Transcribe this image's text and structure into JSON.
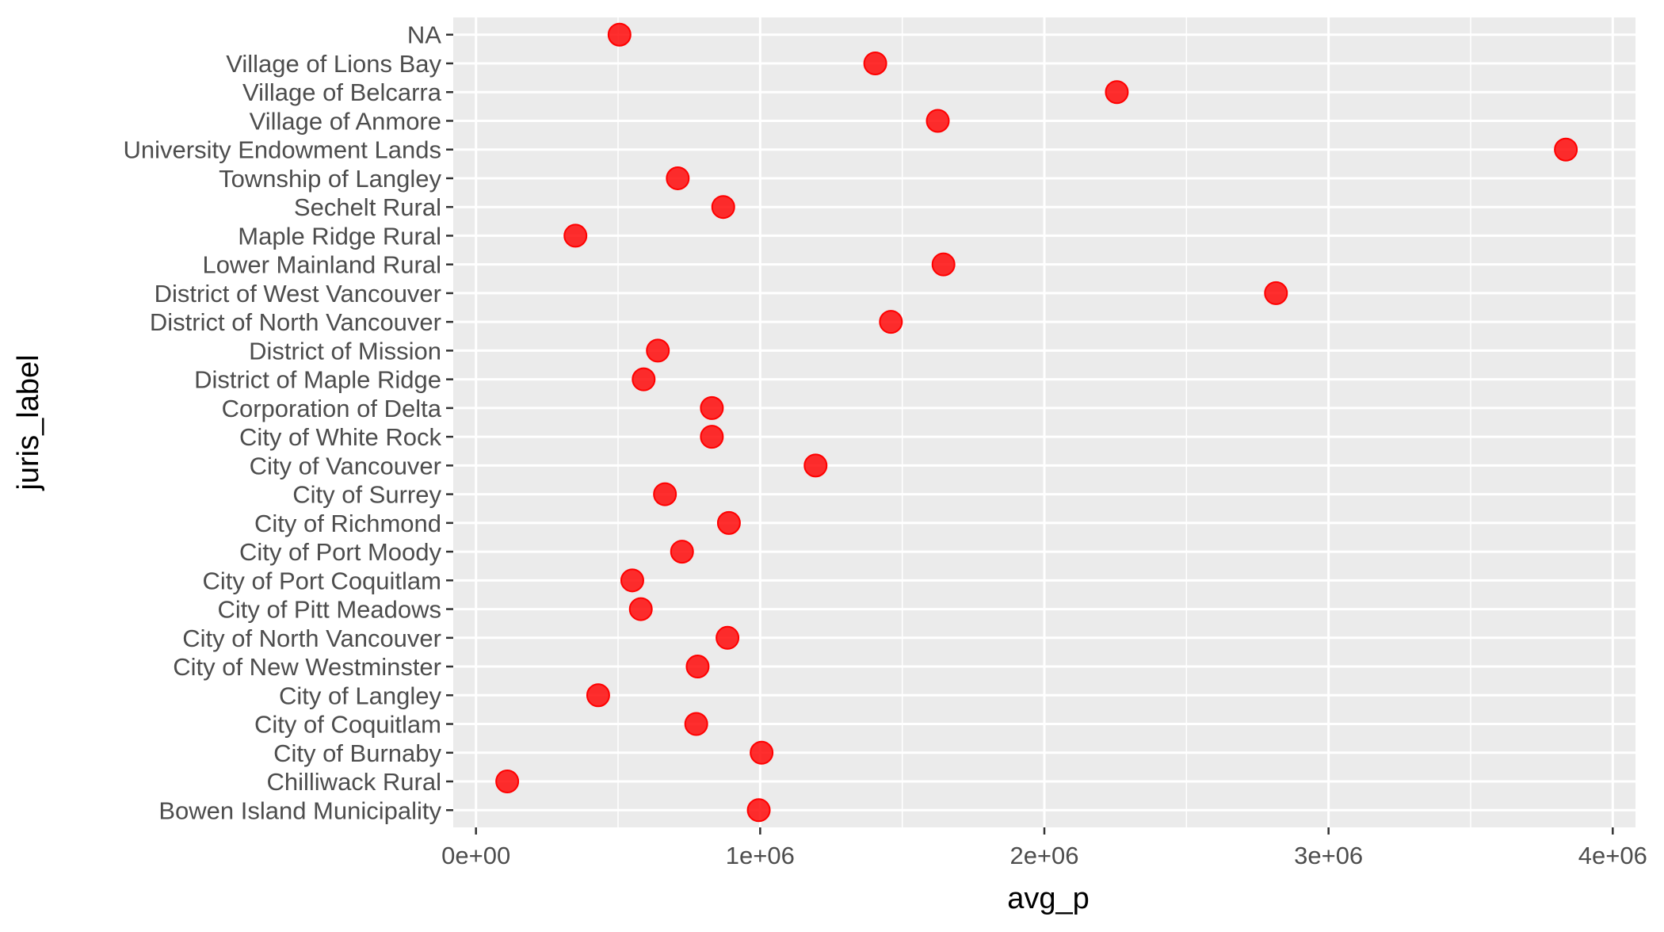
{
  "chart_data": {
    "type": "scatter",
    "xlabel": "avg_p",
    "ylabel": "juris_label",
    "xlim": [
      -80000,
      4080000
    ],
    "x_ticks": [
      0,
      1000000,
      2000000,
      3000000,
      4000000
    ],
    "x_tick_labels": [
      "0e+00",
      "1e+06",
      "2e+06",
      "3e+06",
      "4e+06"
    ],
    "categories": [
      "Bowen Island Municipality",
      "Chilliwack Rural",
      "City of Burnaby",
      "City of Coquitlam",
      "City of Langley",
      "City of New Westminster",
      "City of North Vancouver",
      "City of Pitt Meadows",
      "City of Port Coquitlam",
      "City of Port Moody",
      "City of Richmond",
      "City of Surrey",
      "City of Vancouver",
      "City of White Rock",
      "Corporation of Delta",
      "District of Maple Ridge",
      "District of Mission",
      "District of North Vancouver",
      "District of West Vancouver",
      "Lower Mainland Rural",
      "Maple Ridge Rural",
      "Sechelt Rural",
      "Township of Langley",
      "University Endowment Lands",
      "Village of Anmore",
      "Village of Belcarra",
      "Village of Lions Bay",
      "NA"
    ],
    "values": [
      995000,
      110000,
      1005000,
      775000,
      430000,
      780000,
      885000,
      580000,
      550000,
      725000,
      890000,
      665000,
      1195000,
      830000,
      830000,
      590000,
      640000,
      1460000,
      2815000,
      1645000,
      350000,
      870000,
      710000,
      3835000,
      1625000,
      2255000,
      1405000,
      505000
    ],
    "grid": true,
    "legend": "none",
    "point_color": "#ff0000",
    "panel_background": "#ebebeb",
    "grid_color": "#ffffff"
  }
}
